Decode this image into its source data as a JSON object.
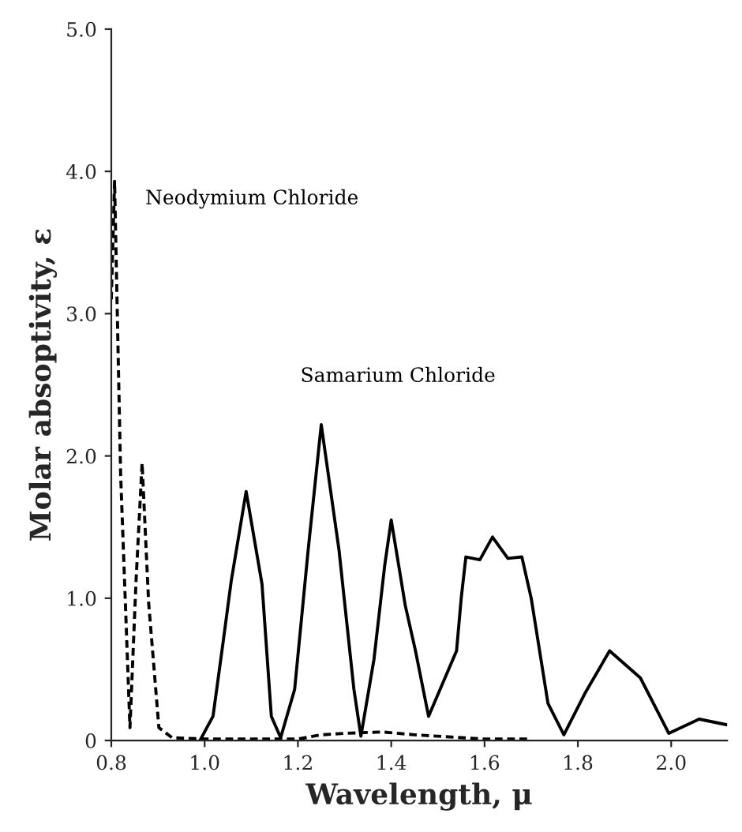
{
  "chart_data": {
    "type": "line",
    "xlabel": "Wavelength, μ",
    "ylabel": "Molar absoptivity, ε",
    "xlim": [
      0.8,
      2.12
    ],
    "ylim": [
      0,
      5.0
    ],
    "xticks": [
      {
        "value": 0.8,
        "label": "0.8"
      },
      {
        "value": 1.0,
        "label": "1.0"
      },
      {
        "value": 1.2,
        "label": "1.2"
      },
      {
        "value": 1.4,
        "label": "1.4"
      },
      {
        "value": 1.6,
        "label": "1.6"
      },
      {
        "value": 1.8,
        "label": "1.8"
      },
      {
        "value": 2.0,
        "label": "2.0"
      }
    ],
    "yticks": [
      0,
      {
        "value": 1.0,
        "label": "1.0"
      },
      {
        "value": 2.0,
        "label": "2.0"
      },
      {
        "value": 3.0,
        "label": "3.0"
      },
      {
        "value": 4.0,
        "label": "4.0"
      },
      {
        "value": 5.0,
        "label": "5.0"
      }
    ],
    "grid": false,
    "legend": false,
    "marker": "none",
    "series": [
      {
        "name": "Neodymium Chloride",
        "color": "#000000",
        "line_style": "dashed",
        "x": [
          0.8,
          0.807,
          0.82,
          0.84,
          0.853,
          0.866,
          0.88,
          0.902,
          0.93,
          1.0,
          1.2,
          1.25,
          1.3,
          1.38,
          1.45,
          1.55,
          1.6,
          1.7
        ],
        "values": [
          3.1,
          3.93,
          1.87,
          0.09,
          1.12,
          1.95,
          0.97,
          0.09,
          0.02,
          0.01,
          0.01,
          0.04,
          0.05,
          0.06,
          0.04,
          0.02,
          0.01,
          0.01
        ]
      },
      {
        "name": "Samarium Chloride",
        "color": "#000000",
        "line_style": "solid",
        "x": [
          0.99,
          1.018,
          1.04,
          1.057,
          1.089,
          1.123,
          1.143,
          1.163,
          1.193,
          1.222,
          1.25,
          1.288,
          1.32,
          1.335,
          1.363,
          1.386,
          1.4,
          1.43,
          1.452,
          1.48,
          1.54,
          1.55,
          1.56,
          1.59,
          1.617,
          1.65,
          1.68,
          1.7,
          1.736,
          1.77,
          1.815,
          1.868,
          1.934,
          1.995,
          2.06,
          2.12
        ],
        "values": [
          0.0,
          0.17,
          0.7,
          1.12,
          1.75,
          1.1,
          0.17,
          0.02,
          0.36,
          1.34,
          2.22,
          1.34,
          0.36,
          0.03,
          0.57,
          1.23,
          1.55,
          0.95,
          0.63,
          0.17,
          0.63,
          1.0,
          1.29,
          1.27,
          1.43,
          1.28,
          1.29,
          1.0,
          0.26,
          0.04,
          0.33,
          0.63,
          0.44,
          0.05,
          0.15,
          0.11
        ]
      }
    ]
  }
}
